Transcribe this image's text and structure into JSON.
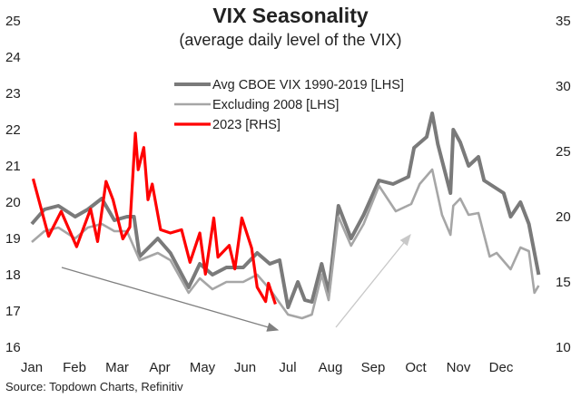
{
  "chart_data": {
    "type": "line",
    "title": "VIX Seasonality",
    "subtitle": "(average daily level of the VIX)",
    "source": "Source: Topdown Charts, Refinitiv",
    "x_unit": "day of year",
    "x_tick_labels": [
      "Jan",
      "Feb",
      "Mar",
      "Apr",
      "May",
      "Jun",
      "Jul",
      "Aug",
      "Sep",
      "Oct",
      "Nov",
      "Dec"
    ],
    "y_left": {
      "range": [
        16,
        25
      ],
      "ticks": [
        16,
        17,
        18,
        19,
        20,
        21,
        22,
        23,
        24,
        25
      ]
    },
    "y_right": {
      "range": [
        10,
        35
      ],
      "ticks": [
        10,
        15,
        20,
        25,
        30,
        35
      ]
    },
    "grid": false,
    "legend_position": "top-center",
    "series": [
      {
        "name": "Avg CBOE VIX 1990-2019 [LHS]",
        "axis": "left",
        "color": "#7a7a7a",
        "x": [
          1,
          10,
          20,
          32,
          41,
          51,
          60,
          69,
          74,
          78,
          91,
          100,
          113,
          121,
          130,
          140,
          152,
          162,
          171,
          178,
          184,
          191,
          196,
          201,
          208,
          213,
          220,
          229,
          238,
          249,
          259,
          270,
          274,
          283,
          287,
          291,
          300,
          302,
          307,
          313,
          320,
          324,
          338,
          343,
          350,
          356,
          363
        ],
        "y": [
          19.4,
          19.8,
          19.9,
          19.6,
          19.8,
          20.1,
          19.5,
          19.6,
          19.6,
          18.5,
          19.0,
          18.6,
          17.65,
          18.3,
          18.0,
          18.2,
          18.2,
          18.6,
          18.3,
          18.4,
          17.1,
          17.8,
          17.3,
          17.25,
          18.3,
          17.5,
          19.9,
          19.0,
          19.65,
          20.6,
          20.5,
          20.7,
          21.5,
          21.8,
          22.45,
          21.6,
          20.25,
          22.0,
          21.65,
          21.0,
          21.25,
          20.6,
          20.25,
          19.6,
          20.0,
          19.4,
          18.0
        ]
      },
      {
        "name": "Excluding 2008 [LHS]",
        "axis": "left",
        "color": "#a6a6a6",
        "x": [
          1,
          10,
          20,
          32,
          41,
          51,
          60,
          69,
          78,
          91,
          100,
          113,
          121,
          130,
          140,
          152,
          162,
          171,
          184,
          194,
          201,
          208,
          213,
          220,
          229,
          238,
          249,
          261,
          272,
          278,
          287,
          294,
          300,
          302,
          307,
          313,
          320,
          328,
          333,
          343,
          350,
          356,
          360,
          363
        ],
        "y": [
          18.9,
          19.2,
          19.3,
          19.0,
          19.3,
          19.4,
          19.2,
          19.2,
          18.4,
          18.6,
          18.4,
          17.5,
          17.9,
          17.6,
          17.8,
          17.8,
          18.0,
          17.6,
          16.9,
          16.8,
          16.9,
          18.0,
          17.3,
          19.6,
          18.8,
          19.4,
          20.45,
          19.75,
          19.95,
          20.5,
          20.9,
          19.65,
          19.1,
          19.9,
          20.1,
          19.65,
          19.7,
          18.5,
          18.6,
          18.15,
          18.75,
          18.65,
          17.5,
          17.7
        ]
      },
      {
        "name": "2023 [RHS]",
        "axis": "right",
        "color": "#ff0000",
        "x": [
          2,
          13,
          22,
          33,
          43,
          48,
          54,
          59,
          66,
          71,
          75,
          77,
          81,
          84,
          87,
          93,
          100,
          108,
          114,
          121,
          125,
          131,
          134,
          142,
          146,
          151,
          158,
          162,
          168,
          170,
          175
        ],
        "y": [
          22.9,
          18.5,
          20.4,
          17.7,
          20.6,
          18.1,
          22.7,
          21.3,
          18.3,
          19.2,
          26.4,
          23.6,
          25.3,
          21.3,
          22.5,
          19.0,
          18.75,
          19.0,
          16.5,
          18.75,
          15.6,
          19.9,
          16.9,
          17.8,
          16.0,
          19.9,
          17.6,
          14.6,
          13.5,
          14.9,
          13.3
        ]
      }
    ]
  }
}
